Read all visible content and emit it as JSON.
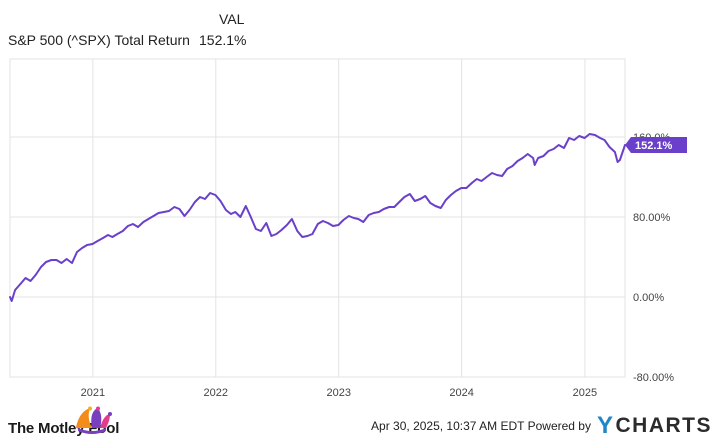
{
  "legend": {
    "column_header": "VAL",
    "series_name": "S&P 500 (^SPX) Total Return",
    "series_value": "152.1%"
  },
  "footer": {
    "brand_left": "The Motley Fool",
    "timestamp": "Apr 30, 2025, 10:37 AM EDT",
    "powered_by": "Powered by",
    "brand_right": "YCHARTS"
  },
  "colors": {
    "line": "#6a3fc9",
    "grid": "#e3e3e3",
    "axis_text": "#444444",
    "end_label_bg": "#6a3fc9",
    "end_label_text": "#ffffff",
    "fool_hat_orange": "#f28c1a",
    "fool_hat_purple": "#7a3fbf",
    "fool_hat_pink": "#e23c8a",
    "ycharts_blue": "#1f86c8"
  },
  "chart_data": {
    "type": "line",
    "title": "",
    "xlabel": "",
    "ylabel": "",
    "x_ticks": [
      "2021",
      "2022",
      "2023",
      "2024",
      "2025"
    ],
    "y_ticks": [
      "160.0%",
      "80.00%",
      "0.00%",
      "-80.00%"
    ],
    "ylim": [
      -80,
      160
    ],
    "grid": true,
    "end_label": "152.1%",
    "series": [
      {
        "name": "S&P 500 (^SPX) Total Return",
        "x": [
          "2020-04-30",
          "2020-05-05",
          "2020-05-15",
          "2020-05-31",
          "2020-06-15",
          "2020-06-30",
          "2020-07-15",
          "2020-07-31",
          "2020-08-15",
          "2020-08-31",
          "2020-09-15",
          "2020-09-30",
          "2020-10-15",
          "2020-10-31",
          "2020-11-15",
          "2020-11-30",
          "2020-12-15",
          "2020-12-31",
          "2021-01-15",
          "2021-01-31",
          "2021-02-15",
          "2021-02-28",
          "2021-03-15",
          "2021-03-31",
          "2021-04-15",
          "2021-04-30",
          "2021-05-15",
          "2021-05-31",
          "2021-06-15",
          "2021-06-30",
          "2021-07-15",
          "2021-07-31",
          "2021-08-15",
          "2021-08-31",
          "2021-09-15",
          "2021-09-30",
          "2021-10-15",
          "2021-10-31",
          "2021-11-15",
          "2021-11-30",
          "2021-12-15",
          "2021-12-31",
          "2022-01-15",
          "2022-01-31",
          "2022-02-15",
          "2022-02-28",
          "2022-03-15",
          "2022-03-31",
          "2022-04-15",
          "2022-04-30",
          "2022-05-15",
          "2022-05-31",
          "2022-06-15",
          "2022-06-30",
          "2022-07-15",
          "2022-07-31",
          "2022-08-15",
          "2022-08-31",
          "2022-09-15",
          "2022-09-30",
          "2022-10-15",
          "2022-10-31",
          "2022-11-15",
          "2022-11-30",
          "2022-12-15",
          "2022-12-31",
          "2023-01-15",
          "2023-01-31",
          "2023-02-15",
          "2023-02-28",
          "2023-03-15",
          "2023-03-31",
          "2023-04-15",
          "2023-04-30",
          "2023-05-15",
          "2023-05-31",
          "2023-06-15",
          "2023-06-30",
          "2023-07-15",
          "2023-07-31",
          "2023-08-15",
          "2023-08-31",
          "2023-09-15",
          "2023-09-30",
          "2023-10-15",
          "2023-10-31",
          "2023-11-15",
          "2023-11-30",
          "2023-12-15",
          "2023-12-31",
          "2024-01-15",
          "2024-01-31",
          "2024-02-15",
          "2024-02-29",
          "2024-03-15",
          "2024-03-31",
          "2024-04-15",
          "2024-04-30",
          "2024-05-15",
          "2024-05-31",
          "2024-06-15",
          "2024-06-30",
          "2024-07-15",
          "2024-07-31",
          "2024-08-05",
          "2024-08-15",
          "2024-08-31",
          "2024-09-15",
          "2024-09-30",
          "2024-10-15",
          "2024-10-31",
          "2024-11-15",
          "2024-11-30",
          "2024-12-15",
          "2024-12-31",
          "2025-01-15",
          "2025-01-31",
          "2025-02-15",
          "2025-02-28",
          "2025-03-15",
          "2025-03-31",
          "2025-04-08",
          "2025-04-15",
          "2025-04-30"
        ],
        "values": [
          0,
          -4,
          7,
          13,
          19,
          16,
          22,
          30,
          35,
          37,
          37,
          34,
          38,
          34,
          45,
          49,
          52,
          53,
          56,
          59,
          62,
          60,
          63,
          66,
          71,
          73,
          70,
          75,
          78,
          81,
          84,
          85,
          86,
          90,
          88,
          81,
          87,
          95,
          100,
          98,
          104,
          102,
          96,
          87,
          83,
          85,
          80,
          91,
          80,
          68,
          66,
          74,
          61,
          63,
          67,
          72,
          78,
          66,
          60,
          61,
          63,
          73,
          76,
          74,
          71,
          72,
          77,
          81,
          79,
          78,
          75,
          82,
          84,
          85,
          88,
          90,
          90,
          95,
          100,
          103,
          96,
          98,
          101,
          94,
          91,
          89,
          97,
          102,
          106,
          109,
          109,
          114,
          118,
          116,
          120,
          124,
          122,
          121,
          128,
          131,
          136,
          139,
          143,
          139,
          132,
          139,
          141,
          146,
          148,
          152,
          149,
          159,
          157,
          161,
          159,
          163,
          162,
          159,
          157,
          150,
          145,
          135,
          137,
          152
        ]
      }
    ]
  }
}
